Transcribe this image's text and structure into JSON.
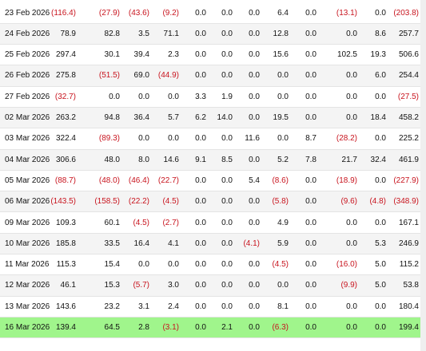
{
  "table": {
    "rows": [
      {
        "date": "23 Feb 2026",
        "values": [
          "(116.4)",
          "(27.9)",
          "(43.6)",
          "(9.2)",
          "0.0",
          "0.0",
          "0.0",
          "6.4",
          "0.0",
          "(13.1)",
          "0.0",
          "(203.8)"
        ]
      },
      {
        "date": "24 Feb 2026",
        "values": [
          "78.9",
          "82.8",
          "3.5",
          "71.1",
          "0.0",
          "0.0",
          "0.0",
          "12.8",
          "0.0",
          "0.0",
          "8.6",
          "257.7"
        ]
      },
      {
        "date": "25 Feb 2026",
        "values": [
          "297.4",
          "30.1",
          "39.4",
          "2.3",
          "0.0",
          "0.0",
          "0.0",
          "15.6",
          "0.0",
          "102.5",
          "19.3",
          "506.6"
        ]
      },
      {
        "date": "26 Feb 2026",
        "values": [
          "275.8",
          "(51.5)",
          "69.0",
          "(44.9)",
          "0.0",
          "0.0",
          "0.0",
          "0.0",
          "0.0",
          "0.0",
          "6.0",
          "254.4"
        ]
      },
      {
        "date": "27 Feb 2026",
        "values": [
          "(32.7)",
          "0.0",
          "0.0",
          "0.0",
          "3.3",
          "1.9",
          "0.0",
          "0.0",
          "0.0",
          "0.0",
          "0.0",
          "(27.5)"
        ]
      },
      {
        "date": "02 Mar 2026",
        "values": [
          "263.2",
          "94.8",
          "36.4",
          "5.7",
          "6.2",
          "14.0",
          "0.0",
          "19.5",
          "0.0",
          "0.0",
          "18.4",
          "458.2"
        ]
      },
      {
        "date": "03 Mar 2026",
        "values": [
          "322.4",
          "(89.3)",
          "0.0",
          "0.0",
          "0.0",
          "0.0",
          "11.6",
          "0.0",
          "8.7",
          "(28.2)",
          "0.0",
          "225.2"
        ]
      },
      {
        "date": "04 Mar 2026",
        "values": [
          "306.6",
          "48.0",
          "8.0",
          "14.6",
          "9.1",
          "8.5",
          "0.0",
          "5.2",
          "7.8",
          "21.7",
          "32.4",
          "461.9"
        ]
      },
      {
        "date": "05 Mar 2026",
        "values": [
          "(88.7)",
          "(48.0)",
          "(46.4)",
          "(22.7)",
          "0.0",
          "0.0",
          "5.4",
          "(8.6)",
          "0.0",
          "(18.9)",
          "0.0",
          "(227.9)"
        ]
      },
      {
        "date": "06 Mar 2026",
        "values": [
          "(143.5)",
          "(158.5)",
          "(22.2)",
          "(4.5)",
          "0.0",
          "0.0",
          "0.0",
          "(5.8)",
          "0.0",
          "(9.6)",
          "(4.8)",
          "(348.9)"
        ]
      },
      {
        "date": "09 Mar 2026",
        "values": [
          "109.3",
          "60.1",
          "(4.5)",
          "(2.7)",
          "0.0",
          "0.0",
          "0.0",
          "4.9",
          "0.0",
          "0.0",
          "0.0",
          "167.1"
        ]
      },
      {
        "date": "10 Mar 2026",
        "values": [
          "185.8",
          "33.5",
          "16.4",
          "4.1",
          "0.0",
          "0.0",
          "(4.1)",
          "5.9",
          "0.0",
          "0.0",
          "5.3",
          "246.9"
        ]
      },
      {
        "date": "11 Mar 2026",
        "values": [
          "115.3",
          "15.4",
          "0.0",
          "0.0",
          "0.0",
          "0.0",
          "0.0",
          "(4.5)",
          "0.0",
          "(16.0)",
          "5.0",
          "115.2"
        ]
      },
      {
        "date": "12 Mar 2026",
        "values": [
          "46.1",
          "15.3",
          "(5.7)",
          "3.0",
          "0.0",
          "0.0",
          "0.0",
          "0.0",
          "0.0",
          "(9.9)",
          "5.0",
          "53.8"
        ]
      },
      {
        "date": "13 Mar 2026",
        "values": [
          "143.6",
          "23.2",
          "3.1",
          "2.4",
          "0.0",
          "0.0",
          "0.0",
          "8.1",
          "0.0",
          "0.0",
          "0.0",
          "180.4"
        ]
      },
      {
        "date": "16 Mar 2026",
        "values": [
          "139.4",
          "64.5",
          "2.8",
          "(3.1)",
          "0.0",
          "2.1",
          "0.0",
          "(6.3)",
          "0.0",
          "0.0",
          "0.0",
          "199.4"
        ]
      }
    ],
    "highlight_color": "#a0f58c",
    "negative_color": "#c8141e"
  }
}
